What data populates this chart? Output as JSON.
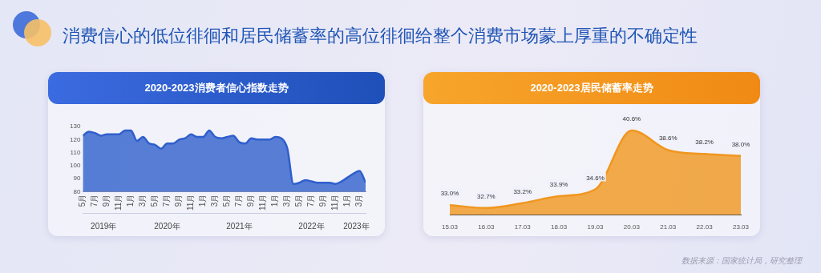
{
  "chart_data": [
    {
      "type": "other",
      "title": "消费信心的低位徘徊和居民储蓄率的高位徘徊给整个消费市场蒙上厚重的不确定性",
      "annotations": [
        "数据来源：国家统计局，研究整理"
      ]
    },
    {
      "type": "area",
      "title": "2020-2023消费者信心指数走势",
      "color": "#2f5fcc",
      "x": [
        "2019-05",
        "2019-06",
        "2019-07",
        "2019-08",
        "2019-09",
        "2019-10",
        "2019-11",
        "2019-12",
        "2020-01",
        "2020-02",
        "2020-03",
        "2020-04",
        "2020-05",
        "2020-06",
        "2020-07",
        "2020-08",
        "2020-09",
        "2020-10",
        "2020-11",
        "2020-12",
        "2021-01",
        "2021-02",
        "2021-03",
        "2021-04",
        "2021-05",
        "2021-06",
        "2021-07",
        "2021-08",
        "2021-09",
        "2021-10",
        "2021-11",
        "2021-12",
        "2022-01",
        "2022-02",
        "2022-03",
        "2022-04",
        "2022-05",
        "2022-06",
        "2022-07",
        "2022-08",
        "2022-09",
        "2022-10",
        "2022-11",
        "2022-12",
        "2023-01",
        "2023-02",
        "2023-03",
        "2023-04"
      ],
      "values": [
        123,
        126,
        125,
        123,
        124,
        124,
        124,
        127,
        127,
        119,
        122,
        117,
        116,
        113,
        117,
        117,
        120,
        121,
        124,
        122,
        122,
        127,
        122,
        121,
        122,
        123,
        118,
        117,
        121,
        120,
        120,
        120,
        122,
        121,
        113,
        86,
        87,
        89,
        88,
        87,
        87,
        87,
        86,
        88,
        91,
        94,
        96,
        87
      ],
      "xlim": [
        "2019-05",
        "2023-04"
      ],
      "xticks": [
        {
          "value": "2019-05",
          "label": "5月"
        },
        {
          "value": "2019-07",
          "label": "7月"
        },
        {
          "value": "2019-09",
          "label": "9月"
        },
        {
          "value": "2019-11",
          "label": "11月"
        },
        {
          "value": "2020-01",
          "label": "1月"
        },
        {
          "value": "2020-03",
          "label": "3月"
        },
        {
          "value": "2020-05",
          "label": "5月"
        },
        {
          "value": "2020-07",
          "label": "7月"
        },
        {
          "value": "2020-09",
          "label": "9月"
        },
        {
          "value": "2020-11",
          "label": "11月"
        },
        {
          "value": "2021-01",
          "label": "1月"
        },
        {
          "value": "2021-03",
          "label": "3月"
        },
        {
          "value": "2021-05",
          "label": "5月"
        },
        {
          "value": "2021-07",
          "label": "7月"
        },
        {
          "value": "2021-09",
          "label": "9月"
        },
        {
          "value": "2021-11",
          "label": "11月"
        },
        {
          "value": "2022-01",
          "label": "1月"
        },
        {
          "value": "2022-03",
          "label": "3月"
        },
        {
          "value": "2022-05",
          "label": "5月"
        },
        {
          "value": "2022-07",
          "label": "7月"
        },
        {
          "value": "2022-09",
          "label": "9月"
        },
        {
          "value": "2022-11",
          "label": "11月"
        },
        {
          "value": "2023-01",
          "label": "1月"
        },
        {
          "value": "2023-03",
          "label": "3月"
        }
      ],
      "x2lim": [
        "2019-05",
        "2023-04"
      ],
      "x2ticks": [
        {
          "value": "2019-08-15",
          "label": "2019年"
        },
        {
          "value": "2020-07",
          "label": "2020年"
        },
        {
          "value": "2021-07",
          "label": "2021年"
        },
        {
          "value": "2022-07",
          "label": "2022年"
        },
        {
          "value": "2023-02-15",
          "label": "2023年"
        }
      ],
      "ylim": [
        80,
        130
      ],
      "yticks": [
        80,
        90,
        100,
        110,
        120,
        130
      ],
      "grid": false,
      "legend": false
    },
    {
      "type": "area",
      "title": "2020-2023居民储蓄率走势",
      "color": "#f0961e",
      "categories": [
        "15.03",
        "16.03",
        "17.03",
        "18.03",
        "19.03",
        "20.03",
        "21.03",
        "22.03",
        "23.03"
      ],
      "values": [
        33.0,
        32.7,
        33.2,
        33.9,
        34.6,
        40.6,
        38.6,
        38.2,
        38.0
      ],
      "value_labels": [
        "33.0%",
        "32.7%",
        "33.2%",
        "33.9%",
        "34.6%",
        "40.6%",
        "38.6%",
        "38.2%",
        "38.0%"
      ],
      "tick_labels": "x",
      "grid": false,
      "legend": false
    }
  ]
}
